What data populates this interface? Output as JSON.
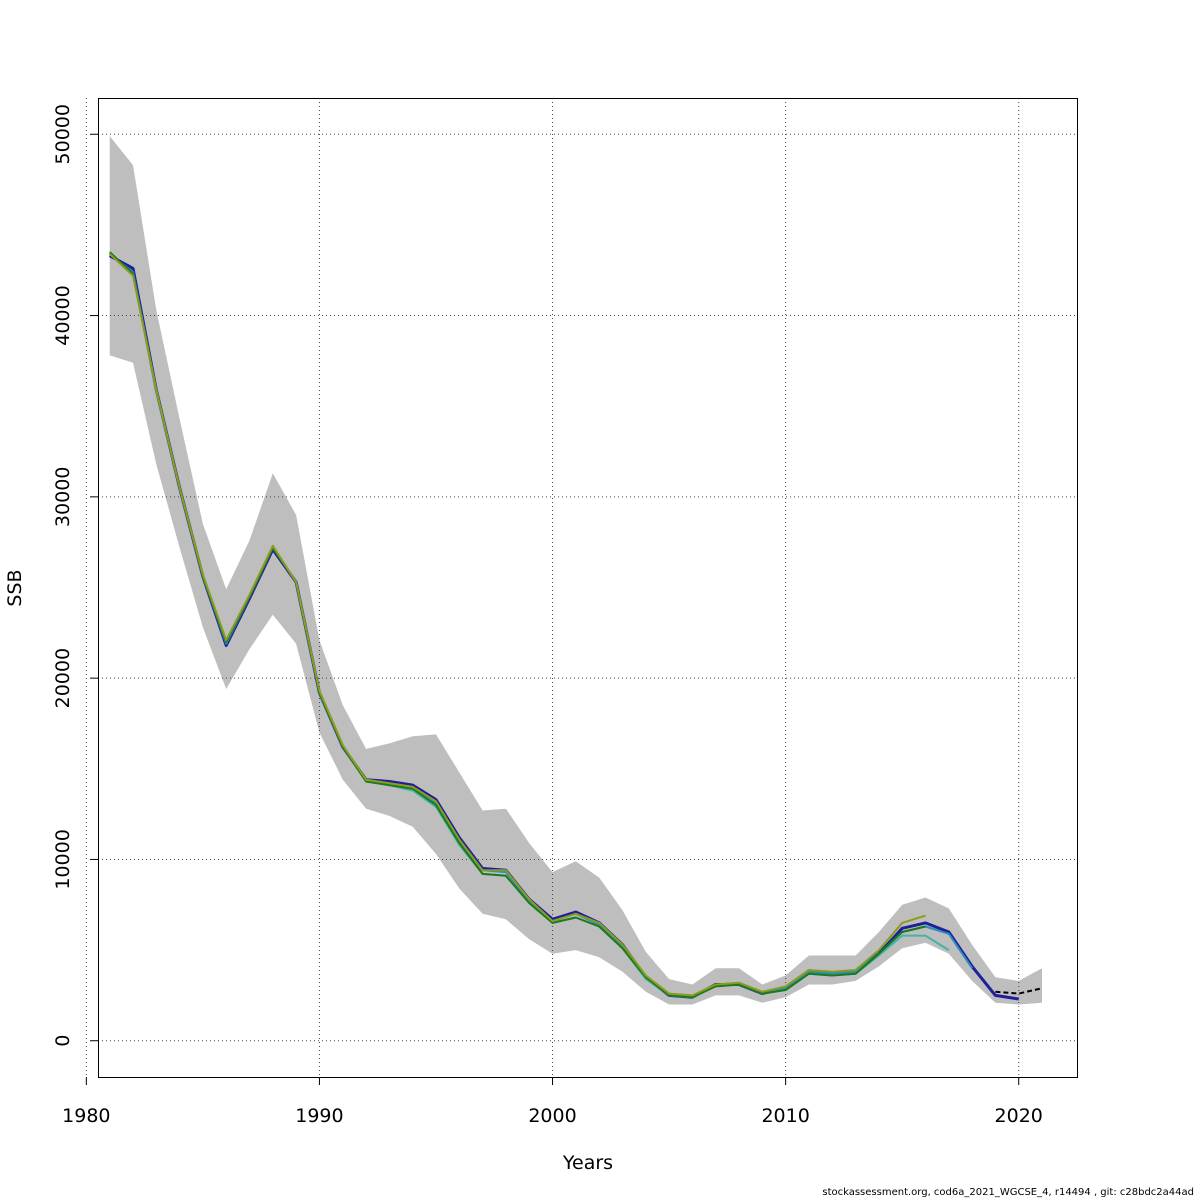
{
  "chart_data": {
    "type": "line",
    "xlabel": "Years",
    "ylabel": "SSB",
    "xlim": [
      1980.5,
      2022.5
    ],
    "ylim": [
      -2000,
      52000
    ],
    "x_ticks": [
      1980,
      1990,
      2000,
      2010,
      2020
    ],
    "y_ticks": [
      0,
      10000,
      20000,
      30000,
      40000,
      50000
    ],
    "x_tick_labels": [
      "1980",
      "1990",
      "2000",
      "2010",
      "2020"
    ],
    "y_tick_labels": [
      "0",
      "10000",
      "20000",
      "30000",
      "40000",
      "50000"
    ],
    "grid": true,
    "band": {
      "color": "#bebebe",
      "x": [
        1981,
        1982,
        1983,
        1984,
        1985,
        1986,
        1987,
        1988,
        1989,
        1990,
        1991,
        1992,
        1993,
        1994,
        1995,
        1996,
        1997,
        1998,
        1999,
        2000,
        2001,
        2002,
        2003,
        2004,
        2005,
        2006,
        2007,
        2008,
        2009,
        2010,
        2011,
        2012,
        2013,
        2014,
        2015,
        2016,
        2017,
        2018,
        2019,
        2020,
        2021
      ],
      "upper": [
        49900,
        48300,
        40300,
        34300,
        28500,
        24900,
        27600,
        31300,
        29000,
        22100,
        18500,
        16100,
        16400,
        16800,
        16900,
        14800,
        12700,
        12800,
        10900,
        9300,
        9900,
        9000,
        7200,
        4900,
        3400,
        3100,
        4000,
        4000,
        3100,
        3600,
        4700,
        4700,
        4700,
        6000,
        7500,
        7900,
        7300,
        5300,
        3500,
        3300,
        4000
      ],
      "lower": [
        37800,
        37400,
        31800,
        27200,
        22800,
        19400,
        21600,
        23500,
        21900,
        17000,
        14400,
        12800,
        12400,
        11800,
        10300,
        8400,
        7000,
        6700,
        5600,
        4800,
        5000,
        4600,
        3800,
        2700,
        2000,
        2000,
        2500,
        2500,
        2100,
        2400,
        3100,
        3100,
        3300,
        4100,
        5100,
        5400,
        4800,
        3300,
        2100,
        2000,
        2100
      ]
    },
    "series": [
      {
        "color": "#1f1f9a",
        "x": [
          1981,
          1982,
          1983,
          1984,
          1985,
          1986,
          1987,
          1988,
          1989,
          1990,
          1991,
          1992,
          1993,
          1994,
          1995,
          1996,
          1997,
          1998,
          1999,
          2000,
          2001,
          2002,
          2003,
          2004,
          2005,
          2006,
          2007,
          2008,
          2009,
          2010,
          2011,
          2012,
          2013,
          2014,
          2015,
          2016,
          2017,
          2018,
          2019,
          2020
        ],
        "y": [
          43300,
          42600,
          35900,
          30500,
          25600,
          21800,
          24400,
          27100,
          25300,
          19200,
          16200,
          14400,
          14300,
          14100,
          13300,
          11200,
          9500,
          9400,
          7800,
          6700,
          7100,
          6500,
          5300,
          3500,
          2500,
          2400,
          3100,
          3100,
          2600,
          2900,
          3800,
          3700,
          3800,
          4800,
          6200,
          6500,
          6000,
          4100,
          2500,
          2300
        ]
      },
      {
        "color": "#2b8cbe",
        "x": [
          1981,
          1982,
          1983,
          1984,
          1985,
          1986,
          1987,
          1988,
          1989,
          1990,
          1991,
          1992,
          1993,
          1994,
          1995,
          1996,
          1997,
          1998,
          1999,
          2000,
          2001,
          2002,
          2003,
          2004,
          2005,
          2006,
          2007,
          2008,
          2009,
          2010,
          2011,
          2012,
          2013,
          2014,
          2015,
          2016,
          2017,
          2018
        ],
        "y": [
          43400,
          42400,
          35900,
          30500,
          25600,
          21900,
          24500,
          27200,
          25300,
          19200,
          16200,
          14400,
          14200,
          14000,
          13100,
          11000,
          9400,
          9300,
          7700,
          6600,
          7000,
          6400,
          5200,
          3500,
          2500,
          2400,
          3100,
          3100,
          2600,
          2900,
          3800,
          3700,
          3800,
          4800,
          6000,
          6300,
          5900,
          4000
        ]
      },
      {
        "color": "#41b6a6",
        "x": [
          1981,
          1982,
          1983,
          1984,
          1985,
          1986,
          1987,
          1988,
          1989,
          1990,
          1991,
          1992,
          1993,
          1994,
          1995,
          1996,
          1997,
          1998,
          1999,
          2000,
          2001,
          2002,
          2003,
          2004,
          2005,
          2006,
          2007,
          2008,
          2009,
          2010,
          2011,
          2012,
          2013,
          2014,
          2015,
          2016,
          2017
        ],
        "y": [
          43400,
          42300,
          35800,
          30500,
          25600,
          22000,
          24500,
          27200,
          25300,
          19200,
          16200,
          14300,
          14100,
          13800,
          12900,
          10800,
          9200,
          9100,
          7600,
          6500,
          6800,
          6300,
          5100,
          3400,
          2500,
          2400,
          3000,
          3100,
          2600,
          2800,
          3700,
          3600,
          3700,
          4700,
          5800,
          5800,
          5000
        ]
      },
      {
        "color": "#1b7a1b",
        "x": [
          1981,
          1982,
          1983,
          1984,
          1985,
          1986,
          1987,
          1988,
          1989,
          1990,
          1991,
          1992,
          1993,
          1994,
          1995,
          1996,
          1997,
          1998,
          1999,
          2000,
          2001,
          2002,
          2003,
          2004,
          2005,
          2006,
          2007,
          2008,
          2009,
          2010,
          2011,
          2012,
          2013,
          2014,
          2015,
          2016
        ],
        "y": [
          43500,
          42300,
          35900,
          30500,
          25600,
          22000,
          24500,
          27200,
          25300,
          19200,
          16200,
          14300,
          14100,
          13900,
          13000,
          10900,
          9200,
          9100,
          7600,
          6500,
          6800,
          6300,
          5100,
          3500,
          2500,
          2400,
          3000,
          3100,
          2600,
          2800,
          3700,
          3600,
          3700,
          4800,
          6000,
          6300
        ]
      },
      {
        "color": "#8c9c1c",
        "x": [
          1981,
          1982,
          1983,
          1984,
          1985,
          1986,
          1987,
          1988,
          1989,
          1990,
          1991,
          1992,
          1993,
          1994,
          1995,
          1996,
          1997,
          1998,
          1999,
          2000,
          2001,
          2002,
          2003,
          2004,
          2005,
          2006,
          2007,
          2008,
          2009,
          2010,
          2011,
          2012,
          2013,
          2014,
          2015,
          2016
        ],
        "y": [
          43400,
          42200,
          35900,
          30500,
          25700,
          22100,
          24600,
          27300,
          25300,
          19300,
          16300,
          14400,
          14200,
          14000,
          13200,
          11100,
          9400,
          9400,
          7800,
          6600,
          7000,
          6500,
          5300,
          3600,
          2600,
          2500,
          3100,
          3200,
          2700,
          3000,
          3900,
          3800,
          3900,
          5000,
          6500,
          6900
        ]
      }
    ],
    "projection": {
      "color": "#000000",
      "x": [
        2019,
        2020,
        2021
      ],
      "y": [
        2700,
        2600,
        2900
      ]
    }
  },
  "footer_text": "stockassessment.org, cod6a_2021_WGCSE_4, r14494 , git: c28bdc2a44ad"
}
